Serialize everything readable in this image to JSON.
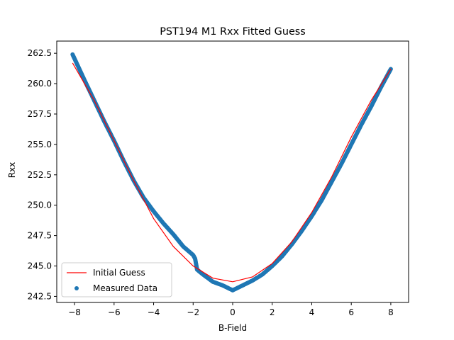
{
  "chart_data": {
    "type": "scatter",
    "title": "PST194 M1 Rxx Fitted Guess",
    "xlabel": "B-Field",
    "ylabel": "Rxx",
    "xlim": [
      -8.9,
      8.9
    ],
    "ylim": [
      242.0,
      263.5
    ],
    "xticks": [
      -8,
      -6,
      -4,
      -2,
      0,
      2,
      4,
      6,
      8
    ],
    "yticks": [
      242.5,
      245.0,
      247.5,
      250.0,
      252.5,
      255.0,
      257.5,
      260.0,
      262.5
    ],
    "xtick_labels": [
      "−8",
      "−6",
      "−4",
      "−2",
      "0",
      "2",
      "4",
      "6",
      "8"
    ],
    "ytick_labels": [
      "242.5",
      "245.0",
      "247.5",
      "250.0",
      "252.5",
      "255.0",
      "257.5",
      "260.0",
      "262.5"
    ],
    "grid": false,
    "legend_position": "lower-left",
    "series": [
      {
        "name": "Initial Guess",
        "kind": "line",
        "color": "#ff0000",
        "x": [
          -8.1,
          -7,
          -6,
          -5,
          -4,
          -3,
          -2,
          -1,
          0,
          1,
          2,
          3,
          4,
          5,
          6,
          7,
          8
        ],
        "y": [
          261.7,
          258.6,
          255.3,
          252.0,
          248.9,
          246.6,
          245.0,
          244.0,
          243.7,
          244.1,
          245.2,
          247.0,
          249.4,
          252.3,
          255.6,
          258.6,
          261.2
        ]
      },
      {
        "name": "Measured Data",
        "kind": "scatter",
        "color": "#1f77b4",
        "x": [
          -8.1,
          -7.5,
          -7,
          -6.5,
          -6,
          -5.5,
          -5,
          -4.5,
          -4,
          -3.5,
          -3,
          -2.5,
          -2,
          -1.9,
          -1.8,
          -1.5,
          -1,
          -0.5,
          0,
          0.5,
          1,
          1.5,
          2,
          2.5,
          3,
          3.5,
          4,
          4.5,
          5,
          5.5,
          6,
          6.5,
          7,
          7.5,
          8
        ],
        "y": [
          262.4,
          260.3,
          258.6,
          256.9,
          255.3,
          253.6,
          252.0,
          250.6,
          249.5,
          248.5,
          247.6,
          246.6,
          245.9,
          245.6,
          244.7,
          244.3,
          243.7,
          243.4,
          243.0,
          243.4,
          243.8,
          244.3,
          245.0,
          245.8,
          246.8,
          247.9,
          249.1,
          250.4,
          251.9,
          253.4,
          255.0,
          256.6,
          258.1,
          259.7,
          261.2
        ]
      }
    ]
  }
}
